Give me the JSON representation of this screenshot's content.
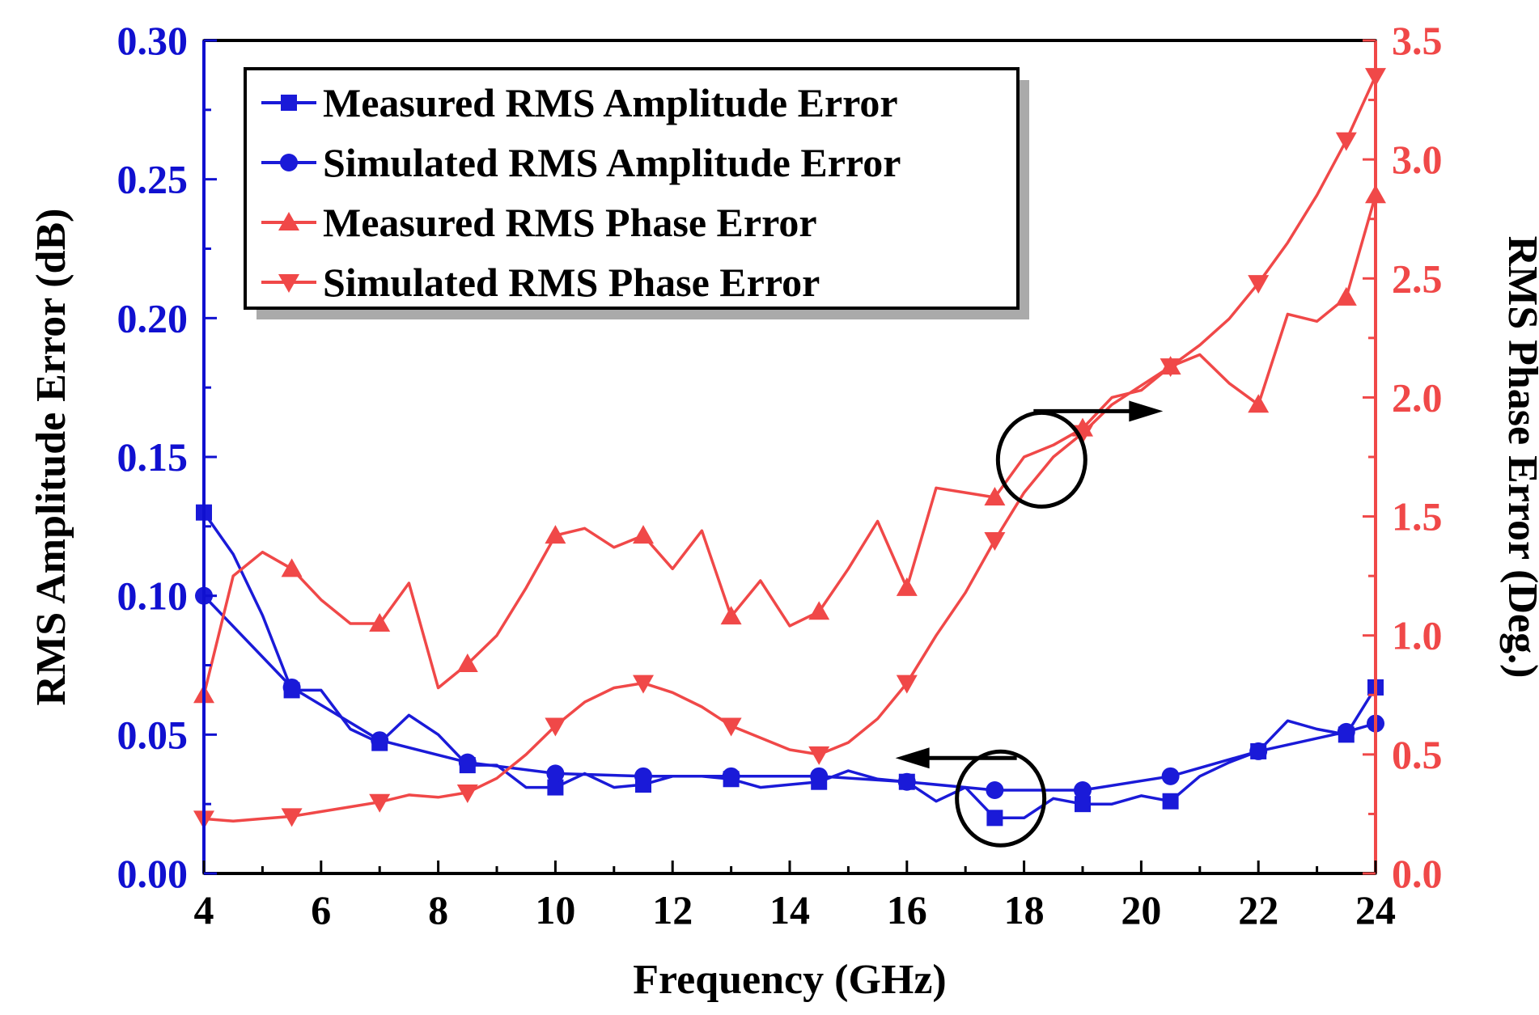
{
  "chart_data": {
    "type": "line",
    "title": "",
    "xlabel": "Frequency (GHz)",
    "ylabel_left": "RMS Amplitude Error (dB)",
    "ylabel_right": "RMS Phase Error (Deg.)",
    "xlim": [
      4,
      24
    ],
    "ylim_left": [
      0,
      0.3
    ],
    "ylim_right": [
      0,
      3.5
    ],
    "x_ticks": [
      4,
      6,
      8,
      10,
      12,
      14,
      16,
      18,
      20,
      22,
      24
    ],
    "y_left_ticks": [
      "0.00",
      "0.05",
      "0.10",
      "0.15",
      "0.20",
      "0.25",
      "0.30"
    ],
    "y_right_ticks": [
      "0.0",
      "0.5",
      "1.0",
      "1.5",
      "2.0",
      "2.5",
      "3.0",
      "3.5"
    ],
    "grid": false,
    "legend_position": "top-left",
    "colors": {
      "left_axis": "#1010d0",
      "right_axis": "#f04848",
      "amplitude": "#1a1ad8",
      "phase": "#f04848",
      "frame": "#000000"
    },
    "annotations": [
      {
        "type": "ellipse-arrow",
        "points_to": "right",
        "cx": 18.3,
        "cy_left": 0.149,
        "label": "phase curves use right axis"
      },
      {
        "type": "ellipse-arrow",
        "points_to": "left",
        "cx": 17.6,
        "cy_left": 0.027,
        "label": "amplitude curves use left axis"
      }
    ],
    "series": [
      {
        "name": "Measured RMS Amplitude Error",
        "axis": "left",
        "marker": "square",
        "color": "#1a1ad8",
        "x": [
          4,
          4.5,
          5,
          5.5,
          6,
          6.5,
          7,
          7.5,
          8,
          8.5,
          9,
          9.5,
          10,
          10.5,
          11,
          11.5,
          12,
          12.5,
          13,
          13.5,
          14,
          14.5,
          15,
          15.5,
          16,
          16.5,
          17,
          17.5,
          18,
          18.5,
          19,
          19.5,
          20,
          20.5,
          21,
          21.5,
          22,
          22.5,
          23,
          23.5,
          24
        ],
        "values": [
          0.13,
          0.115,
          0.093,
          0.066,
          0.066,
          0.052,
          0.047,
          0.057,
          0.05,
          0.039,
          0.039,
          0.031,
          0.031,
          0.036,
          0.031,
          0.032,
          0.035,
          0.035,
          0.034,
          0.031,
          0.032,
          0.033,
          0.037,
          0.034,
          0.033,
          0.026,
          0.031,
          0.02,
          0.02,
          0.027,
          0.025,
          0.025,
          0.028,
          0.026,
          0.035,
          0.04,
          0.044,
          0.055,
          0.052,
          0.05,
          0.067
        ],
        "marker_x": [
          4,
          5.5,
          7,
          8.5,
          10,
          11.5,
          13,
          14.5,
          16,
          17.5,
          19,
          20.5,
          22,
          23.5,
          24
        ]
      },
      {
        "name": "Simulated RMS Amplitude Error",
        "axis": "left",
        "marker": "circle",
        "color": "#1a1ad8",
        "x": [
          4,
          5.5,
          7,
          8.5,
          10,
          11.5,
          13,
          14.5,
          16,
          17.5,
          19,
          20.5,
          22,
          23.5,
          24
        ],
        "values": [
          0.1,
          0.067,
          0.048,
          0.04,
          0.036,
          0.035,
          0.035,
          0.035,
          0.033,
          0.03,
          0.03,
          0.035,
          0.044,
          0.051,
          0.054
        ],
        "marker_x": [
          4,
          5.5,
          7,
          8.5,
          10,
          11.5,
          13,
          14.5,
          16,
          17.5,
          19,
          20.5,
          22,
          23.5,
          24
        ]
      },
      {
        "name": "Measured RMS Phase Error",
        "axis": "right",
        "marker": "triangle-up",
        "color": "#f04848",
        "x": [
          4,
          4.5,
          5,
          5.5,
          6,
          6.5,
          7,
          7.5,
          8,
          8.5,
          9,
          9.5,
          10,
          10.5,
          11,
          11.5,
          12,
          12.5,
          13,
          13.5,
          14,
          14.5,
          15,
          15.5,
          16,
          16.5,
          17,
          17.5,
          18,
          18.5,
          19,
          19.5,
          20,
          20.5,
          21,
          21.5,
          22,
          22.5,
          23,
          23.5,
          24
        ],
        "values": [
          0.75,
          1.25,
          1.35,
          1.28,
          1.15,
          1.05,
          1.05,
          1.22,
          0.78,
          0.88,
          1.0,
          1.2,
          1.42,
          1.45,
          1.37,
          1.42,
          1.28,
          1.44,
          1.08,
          1.23,
          1.04,
          1.1,
          1.28,
          1.48,
          1.2,
          1.62,
          1.6,
          1.58,
          1.75,
          1.8,
          1.87,
          2.0,
          2.03,
          2.13,
          2.18,
          2.06,
          1.97,
          2.35,
          2.32,
          2.42,
          2.85
        ],
        "marker_x": [
          4,
          5.5,
          7,
          8.5,
          10,
          11.5,
          13,
          14.5,
          16,
          17.5,
          19,
          20.5,
          22,
          23.5,
          24
        ]
      },
      {
        "name": "Simulated RMS Phase Error",
        "axis": "right",
        "marker": "triangle-down",
        "color": "#f04848",
        "x": [
          4,
          4.5,
          5,
          5.5,
          6,
          6.5,
          7,
          7.5,
          8,
          8.5,
          9,
          9.5,
          10,
          10.5,
          11,
          11.5,
          12,
          12.5,
          13,
          13.5,
          14,
          14.5,
          15,
          15.5,
          16,
          16.5,
          17,
          17.5,
          18,
          18.5,
          19,
          19.5,
          20,
          20.5,
          21,
          21.5,
          22,
          22.5,
          23,
          23.5,
          24
        ],
        "values": [
          0.23,
          0.22,
          0.23,
          0.24,
          0.26,
          0.28,
          0.3,
          0.33,
          0.32,
          0.34,
          0.4,
          0.5,
          0.62,
          0.72,
          0.78,
          0.8,
          0.76,
          0.7,
          0.62,
          0.57,
          0.52,
          0.5,
          0.55,
          0.65,
          0.8,
          1.0,
          1.18,
          1.4,
          1.6,
          1.75,
          1.85,
          1.97,
          2.05,
          2.13,
          2.22,
          2.33,
          2.48,
          2.65,
          2.85,
          3.08,
          3.35
        ],
        "marker_x": [
          4,
          5.5,
          7,
          8.5,
          10,
          11.5,
          13,
          14.5,
          16,
          17.5,
          19,
          20.5,
          22,
          23.5,
          24
        ]
      }
    ]
  }
}
